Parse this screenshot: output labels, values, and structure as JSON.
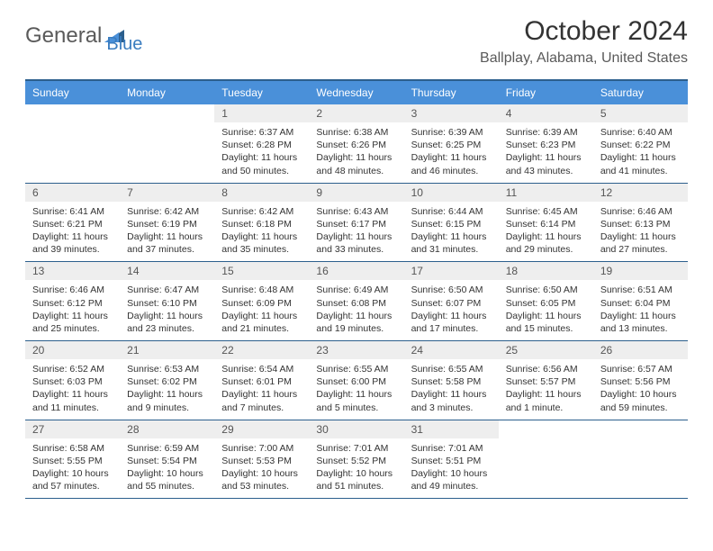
{
  "logo": {
    "text_a": "General",
    "text_b": "Blue"
  },
  "title": "October 2024",
  "location": "Ballplay, Alabama, United States",
  "colors": {
    "header_bg": "#4a90d9",
    "header_text": "#ffffff",
    "border": "#2c5f8d",
    "daynum_bg": "#eeeeee",
    "body_text": "#333333"
  },
  "day_names": [
    "Sunday",
    "Monday",
    "Tuesday",
    "Wednesday",
    "Thursday",
    "Friday",
    "Saturday"
  ],
  "weeks": [
    [
      {
        "empty": true
      },
      {
        "empty": true
      },
      {
        "n": "1",
        "sr": "6:37 AM",
        "ss": "6:28 PM",
        "dl": "11 hours and 50 minutes."
      },
      {
        "n": "2",
        "sr": "6:38 AM",
        "ss": "6:26 PM",
        "dl": "11 hours and 48 minutes."
      },
      {
        "n": "3",
        "sr": "6:39 AM",
        "ss": "6:25 PM",
        "dl": "11 hours and 46 minutes."
      },
      {
        "n": "4",
        "sr": "6:39 AM",
        "ss": "6:23 PM",
        "dl": "11 hours and 43 minutes."
      },
      {
        "n": "5",
        "sr": "6:40 AM",
        "ss": "6:22 PM",
        "dl": "11 hours and 41 minutes."
      }
    ],
    [
      {
        "n": "6",
        "sr": "6:41 AM",
        "ss": "6:21 PM",
        "dl": "11 hours and 39 minutes."
      },
      {
        "n": "7",
        "sr": "6:42 AM",
        "ss": "6:19 PM",
        "dl": "11 hours and 37 minutes."
      },
      {
        "n": "8",
        "sr": "6:42 AM",
        "ss": "6:18 PM",
        "dl": "11 hours and 35 minutes."
      },
      {
        "n": "9",
        "sr": "6:43 AM",
        "ss": "6:17 PM",
        "dl": "11 hours and 33 minutes."
      },
      {
        "n": "10",
        "sr": "6:44 AM",
        "ss": "6:15 PM",
        "dl": "11 hours and 31 minutes."
      },
      {
        "n": "11",
        "sr": "6:45 AM",
        "ss": "6:14 PM",
        "dl": "11 hours and 29 minutes."
      },
      {
        "n": "12",
        "sr": "6:46 AM",
        "ss": "6:13 PM",
        "dl": "11 hours and 27 minutes."
      }
    ],
    [
      {
        "n": "13",
        "sr": "6:46 AM",
        "ss": "6:12 PM",
        "dl": "11 hours and 25 minutes."
      },
      {
        "n": "14",
        "sr": "6:47 AM",
        "ss": "6:10 PM",
        "dl": "11 hours and 23 minutes."
      },
      {
        "n": "15",
        "sr": "6:48 AM",
        "ss": "6:09 PM",
        "dl": "11 hours and 21 minutes."
      },
      {
        "n": "16",
        "sr": "6:49 AM",
        "ss": "6:08 PM",
        "dl": "11 hours and 19 minutes."
      },
      {
        "n": "17",
        "sr": "6:50 AM",
        "ss": "6:07 PM",
        "dl": "11 hours and 17 minutes."
      },
      {
        "n": "18",
        "sr": "6:50 AM",
        "ss": "6:05 PM",
        "dl": "11 hours and 15 minutes."
      },
      {
        "n": "19",
        "sr": "6:51 AM",
        "ss": "6:04 PM",
        "dl": "11 hours and 13 minutes."
      }
    ],
    [
      {
        "n": "20",
        "sr": "6:52 AM",
        "ss": "6:03 PM",
        "dl": "11 hours and 11 minutes."
      },
      {
        "n": "21",
        "sr": "6:53 AM",
        "ss": "6:02 PM",
        "dl": "11 hours and 9 minutes."
      },
      {
        "n": "22",
        "sr": "6:54 AM",
        "ss": "6:01 PM",
        "dl": "11 hours and 7 minutes."
      },
      {
        "n": "23",
        "sr": "6:55 AM",
        "ss": "6:00 PM",
        "dl": "11 hours and 5 minutes."
      },
      {
        "n": "24",
        "sr": "6:55 AM",
        "ss": "5:58 PM",
        "dl": "11 hours and 3 minutes."
      },
      {
        "n": "25",
        "sr": "6:56 AM",
        "ss": "5:57 PM",
        "dl": "11 hours and 1 minute."
      },
      {
        "n": "26",
        "sr": "6:57 AM",
        "ss": "5:56 PM",
        "dl": "10 hours and 59 minutes."
      }
    ],
    [
      {
        "n": "27",
        "sr": "6:58 AM",
        "ss": "5:55 PM",
        "dl": "10 hours and 57 minutes."
      },
      {
        "n": "28",
        "sr": "6:59 AM",
        "ss": "5:54 PM",
        "dl": "10 hours and 55 minutes."
      },
      {
        "n": "29",
        "sr": "7:00 AM",
        "ss": "5:53 PM",
        "dl": "10 hours and 53 minutes."
      },
      {
        "n": "30",
        "sr": "7:01 AM",
        "ss": "5:52 PM",
        "dl": "10 hours and 51 minutes."
      },
      {
        "n": "31",
        "sr": "7:01 AM",
        "ss": "5:51 PM",
        "dl": "10 hours and 49 minutes."
      },
      {
        "empty": true
      },
      {
        "empty": true
      }
    ]
  ],
  "labels": {
    "sunrise": "Sunrise:",
    "sunset": "Sunset:",
    "daylight": "Daylight:"
  }
}
